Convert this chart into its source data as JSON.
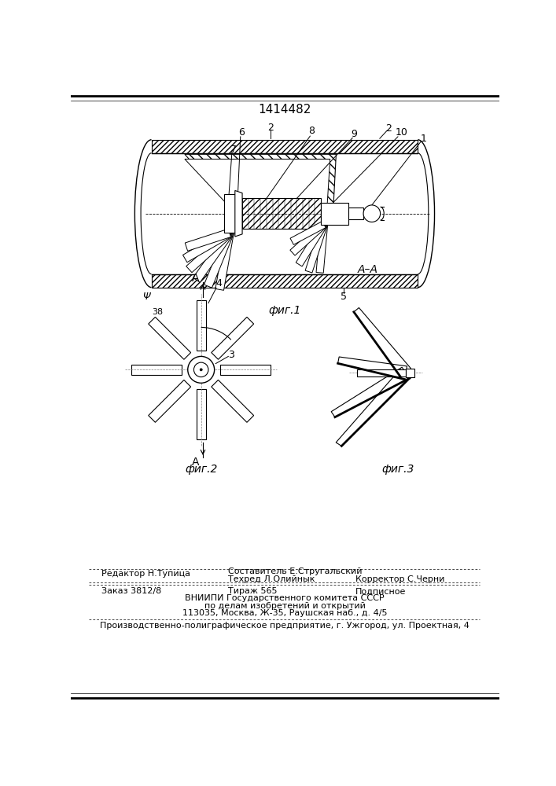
{
  "patent_number": "1414482",
  "bg_color": "#ffffff",
  "line_color": "#000000",
  "fig1_caption": "фиг.1",
  "fig2_caption": "фиг.2",
  "fig3_caption": "фиг.3",
  "footer": {
    "editor": "Редактор Н.Тупица",
    "composer": "Составитель Е.Стругальский",
    "techred": "Техред Л.Олийнык",
    "corrector": "Корректор С.Черни",
    "order": "Заказ 3812/8",
    "circulation": "Тираж 565",
    "subscription": "Подписное",
    "vniipri1": "ВНИИПИ Государственного комитета СССР",
    "vniipri2": "по делам изобретений и открытий",
    "vniipri3": "113035, Москва, Ж-35, Раушская наб., д. 4/5",
    "production": "Производственно-полиграфическое предприятие, г. Ужгород, ул. Проектная, 4"
  }
}
